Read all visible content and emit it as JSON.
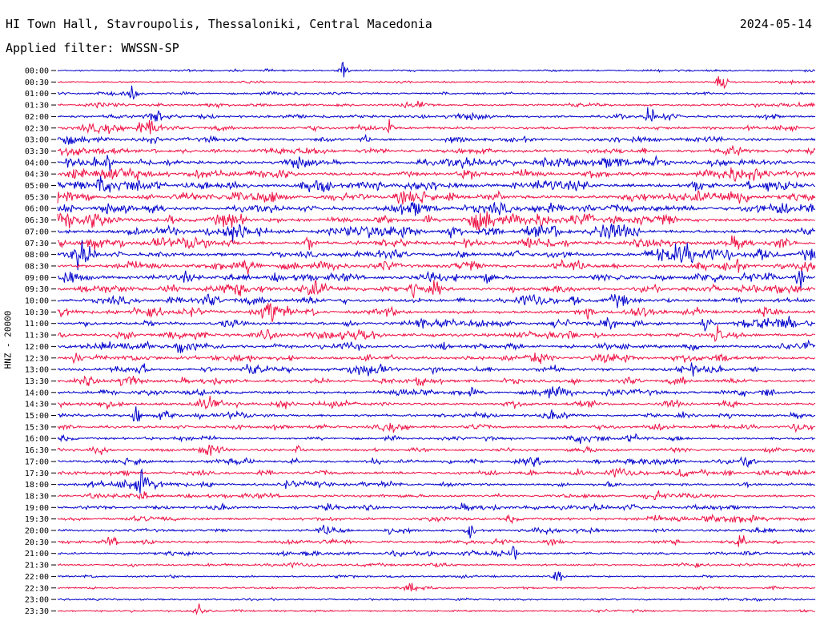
{
  "header": {
    "station": "HI Town Hall, Stavroupolis, Thessaloniki, Central Macedonia",
    "date": "2024-05-14",
    "filter": "Applied filter: WWSSN-SP"
  },
  "chart_data": {
    "type": "line",
    "title": "HI Town Hall, Stavroupolis, Thessaloniki, Central Macedonia",
    "date": "2024-05-14",
    "filter": "WWSSN-SP",
    "ylabel": "HNZ - 20000",
    "xlabel": "",
    "row_labels": [
      "00:00",
      "00:30",
      "01:00",
      "01:30",
      "02:00",
      "02:30",
      "03:00",
      "03:30",
      "04:00",
      "04:30",
      "05:00",
      "05:30",
      "06:00",
      "06:30",
      "07:00",
      "07:30",
      "08:00",
      "08:30",
      "09:00",
      "09:30",
      "10:00",
      "10:30",
      "11:00",
      "11:30",
      "12:00",
      "12:30",
      "13:00",
      "13:30",
      "14:00",
      "14:30",
      "15:00",
      "15:30",
      "16:00",
      "16:30",
      "17:00",
      "17:30",
      "18:00",
      "18:30",
      "19:00",
      "19:30",
      "20:00",
      "20:30",
      "21:00",
      "21:30",
      "22:00",
      "22:30",
      "23:00",
      "23:30"
    ],
    "series_colors": [
      "#0000cc",
      "#ee1144"
    ],
    "amplitude_level": [
      0.15,
      0.15,
      0.25,
      0.35,
      0.45,
      0.55,
      0.6,
      0.65,
      0.75,
      0.8,
      0.85,
      0.9,
      0.9,
      0.95,
      0.9,
      0.85,
      0.9,
      0.85,
      0.8,
      0.8,
      0.8,
      0.75,
      0.75,
      0.7,
      0.75,
      0.7,
      0.65,
      0.6,
      0.6,
      0.55,
      0.55,
      0.5,
      0.45,
      0.45,
      0.55,
      0.6,
      0.55,
      0.5,
      0.55,
      0.5,
      0.45,
      0.45,
      0.4,
      0.35,
      0.2,
      0.2,
      0.2,
      0.2
    ]
  }
}
